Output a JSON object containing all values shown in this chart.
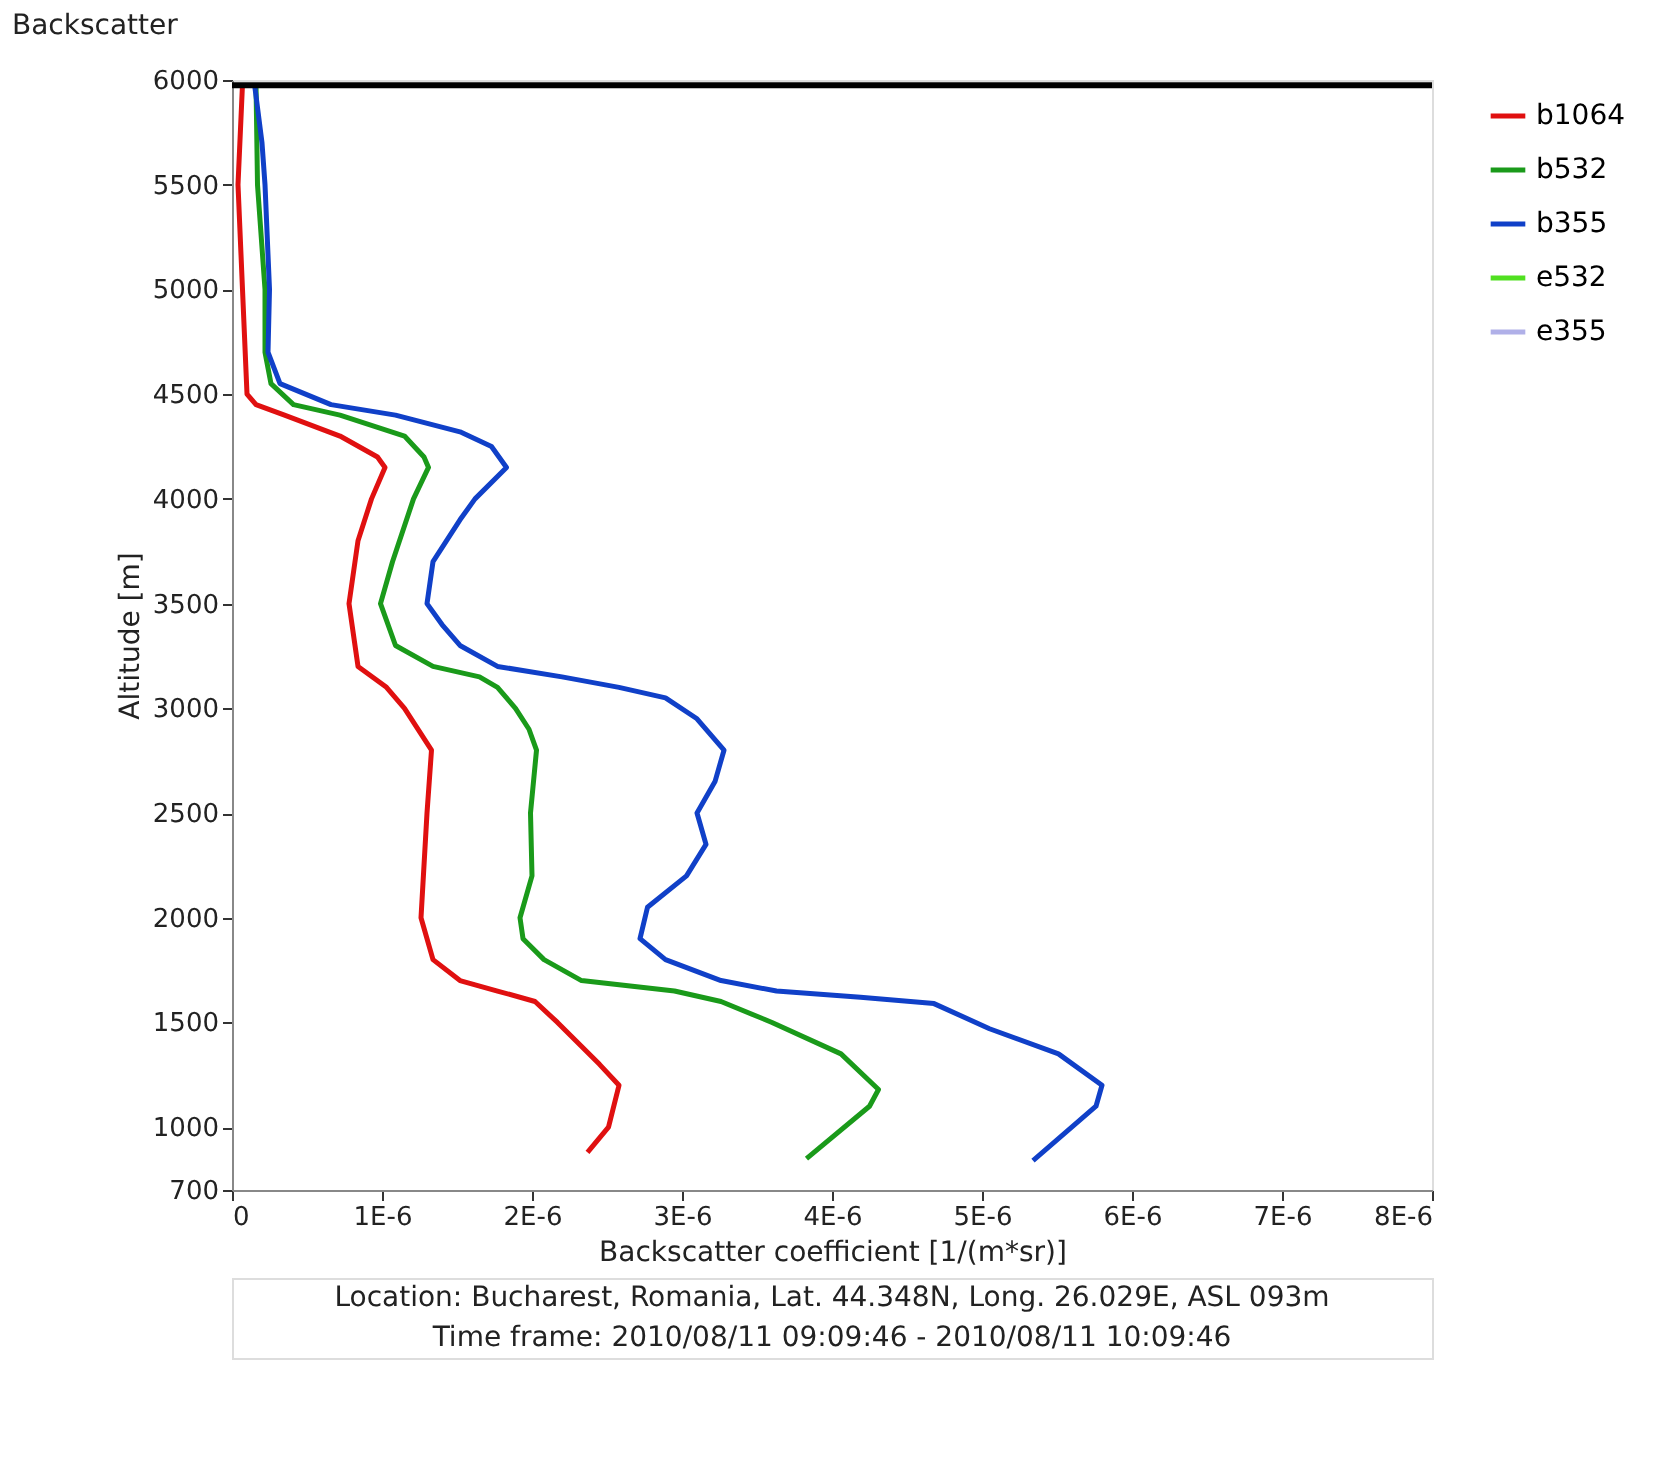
{
  "chart_data": {
    "type": "line",
    "title": "Backscatter",
    "xlabel": "Backscatter coefficient [1/(m*sr)]",
    "ylabel": "Altitude [m]",
    "annotations": [
      "Location: Bucharest, Romania, Lat. 44.348N, Long. 26.029E, ASL 093m",
      "Time frame: 2010/08/11 09:09:46 - 2010/08/11 10:09:46"
    ],
    "xlim": [
      0,
      8e-06
    ],
    "ylim": [
      700,
      6000
    ],
    "xticks": [
      0,
      {
        "value": 1e-06,
        "label": "1E-6"
      },
      {
        "value": 2e-06,
        "label": "2E-6"
      },
      {
        "value": 3e-06,
        "label": "3E-6"
      },
      {
        "value": 4e-06,
        "label": "4E-6"
      },
      {
        "value": 5e-06,
        "label": "5E-6"
      },
      {
        "value": 6e-06,
        "label": "6E-6"
      },
      {
        "value": 7e-06,
        "label": "7E-6"
      },
      {
        "value": 8e-06,
        "label": "8E-6"
      }
    ],
    "yticks": [
      700,
      1000,
      1500,
      2000,
      2500,
      3000,
      3500,
      4000,
      4500,
      5000,
      5500,
      6000
    ],
    "grid": false,
    "legend": "right",
    "marker": "none",
    "line_style": "solid",
    "ref_lines": [
      {
        "axis": "y",
        "value": 5975,
        "color": "#000000"
      }
    ],
    "series": [
      {
        "name": "b1064",
        "color": "#e01010",
        "x": [
          7e-08,
          4e-08,
          7e-08,
          1e-07,
          1.6e-07,
          3.5e-07,
          7.2e-07,
          9.7e-07,
          1.02e-06,
          9.3e-07,
          8.4e-07,
          7.8e-07,
          8.4e-07,
          1.03e-06,
          1.15e-06,
          1.33e-06,
          1.3e-06,
          1.26e-06,
          1.34e-06,
          1.52e-06,
          1.77e-06,
          2.02e-06,
          2.17e-06,
          2.45e-06,
          2.58e-06,
          2.51e-06,
          2.37e-06
        ],
        "values": [
          5980,
          5500,
          5000,
          4500,
          4450,
          4400,
          4300,
          4200,
          4150,
          4000,
          3800,
          3500,
          3200,
          3100,
          3000,
          2800,
          2500,
          2000,
          1800,
          1700,
          1650,
          1600,
          1500,
          1300,
          1200,
          1000,
          880
        ]
      },
      {
        "name": "b532",
        "color": "#1a9a1a",
        "x": [
          1.6e-07,
          1.7e-07,
          2.2e-07,
          2.2e-07,
          2.6e-07,
          4.1e-07,
          7.2e-07,
          1.15e-06,
          1.28e-06,
          1.31e-06,
          1.21e-06,
          1.07e-06,
          9.9e-07,
          1.09e-06,
          1.34e-06,
          1.65e-06,
          1.77e-06,
          1.89e-06,
          1.98e-06,
          2.03e-06,
          1.99e-06,
          2e-06,
          1.92e-06,
          1.94e-06,
          2.08e-06,
          2.33e-06,
          2.95e-06,
          3.26e-06,
          3.6e-06,
          4.06e-06,
          4.31e-06,
          4.25e-06,
          3.83e-06
        ],
        "values": [
          5980,
          5500,
          5000,
          4700,
          4550,
          4450,
          4400,
          4300,
          4200,
          4150,
          4000,
          3700,
          3500,
          3300,
          3200,
          3150,
          3100,
          3000,
          2900,
          2800,
          2500,
          2200,
          2000,
          1900,
          1800,
          1700,
          1650,
          1600,
          1500,
          1350,
          1180,
          1100,
          850
        ]
      },
      {
        "name": "b355",
        "color": "#1040c8",
        "x": [
          1.5e-07,
          2e-07,
          2.2e-07,
          2.5e-07,
          2.4e-07,
          3.2e-07,
          6.6e-07,
          1.09e-06,
          1.52e-06,
          1.73e-06,
          1.83e-06,
          1.62e-06,
          1.52e-06,
          1.34e-06,
          1.3e-06,
          1.4e-06,
          1.52e-06,
          1.77e-06,
          2.2e-06,
          2.58e-06,
          2.89e-06,
          3.1e-06,
          3.28e-06,
          3.22e-06,
          3.1e-06,
          3.16e-06,
          3.03e-06,
          2.77e-06,
          2.72e-06,
          2.89e-06,
          3.26e-06,
          3.63e-06,
          4.19e-06,
          4.68e-06,
          5.05e-06,
          5.51e-06,
          5.8e-06,
          5.76e-06,
          5.34e-06
        ],
        "values": [
          5980,
          5700,
          5500,
          5000,
          4700,
          4550,
          4450,
          4400,
          4320,
          4250,
          4150,
          4000,
          3900,
          3700,
          3500,
          3400,
          3300,
          3200,
          3150,
          3100,
          3050,
          2950,
          2800,
          2650,
          2500,
          2350,
          2200,
          2050,
          1900,
          1800,
          1700,
          1650,
          1620,
          1590,
          1470,
          1350,
          1200,
          1100,
          840
        ]
      },
      {
        "name": "e532",
        "color": "#50e020"
      },
      {
        "name": "e355",
        "color": "#b0b0e8"
      }
    ]
  }
}
